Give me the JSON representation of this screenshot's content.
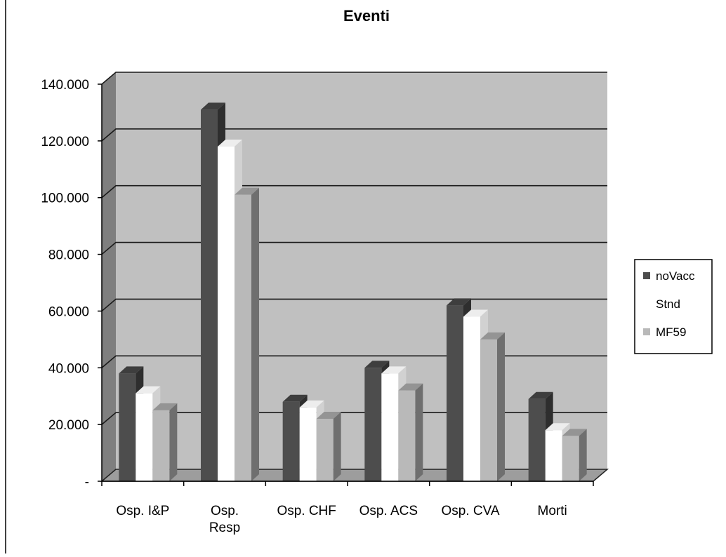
{
  "chart_data": {
    "type": "bar",
    "title": "Eventi",
    "categories": [
      [
        "Osp. I&P"
      ],
      [
        "Osp.",
        "Resp"
      ],
      [
        "Osp. CHF"
      ],
      [
        "Osp. ACS"
      ],
      [
        "Osp. CVA"
      ],
      [
        "Morti"
      ]
    ],
    "y_tick_labels": [
      "-",
      "20.000",
      "40.000",
      "60.000",
      "80.000",
      "100.000",
      "120.000",
      "140.000"
    ],
    "ylim": [
      0,
      140000
    ],
    "series": [
      {
        "name": "noVacc",
        "values": [
          38000,
          131000,
          28000,
          40000,
          62000,
          29000
        ]
      },
      {
        "name": "Stnd",
        "values": [
          31000,
          118000,
          26000,
          38000,
          58000,
          18000
        ]
      },
      {
        "name": "MF59",
        "values": [
          25000,
          101000,
          22000,
          32000,
          50000,
          16000
        ]
      }
    ],
    "grid": true,
    "legend_position": "right",
    "colors": {
      "noVacc": "#4d4d4d",
      "Stnd": "#ffffff",
      "MF59": "#b9b9b9",
      "plot_back": "#c0c0c0",
      "plot_side": "#7f7f7f",
      "floor": "#9d9d9d",
      "gridline": "#1a1a1a"
    }
  }
}
